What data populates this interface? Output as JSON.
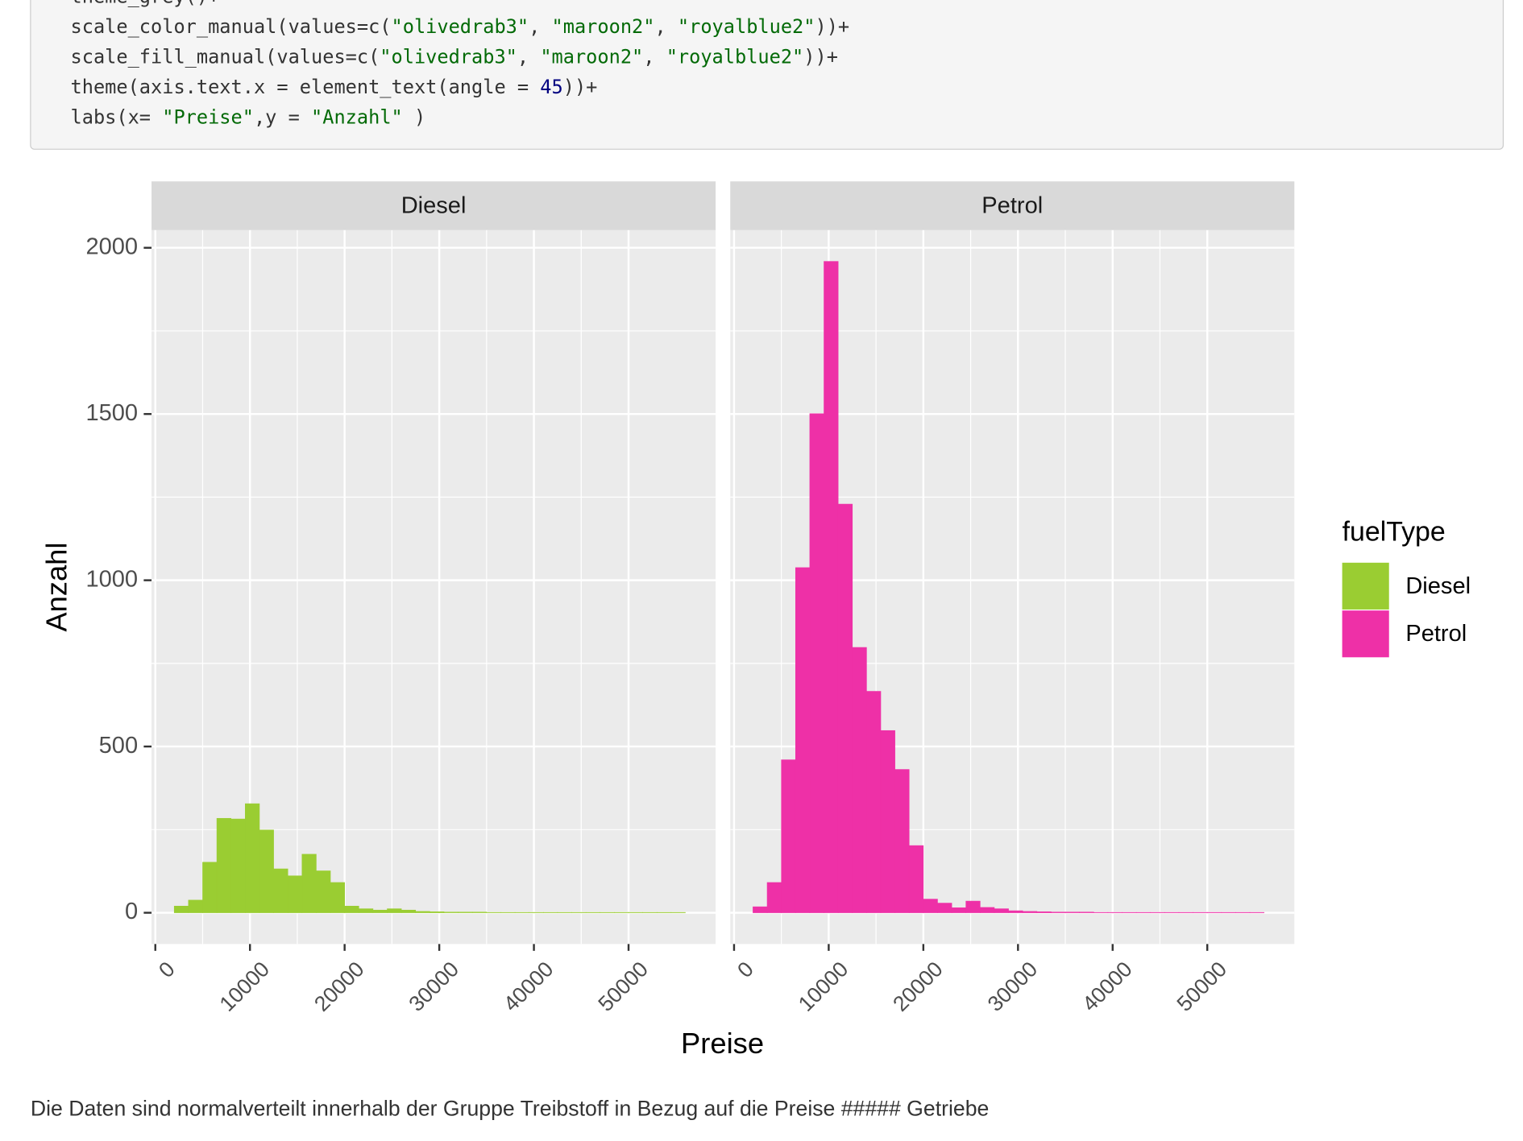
{
  "code": [
    "theme_grey()+",
    "scale_color_manual(values=c(\"olivedrab3\", \"maroon2\", \"royalblue2\"))+",
    "scale_fill_manual(values=c(\"olivedrab3\", \"maroon2\", \"royalblue2\"))+",
    "theme(axis.text.x = element_text(angle = 45))+",
    "labs(x= \"Preise\",y = \"Anzahl\" )"
  ],
  "chart_data": {
    "type": "histogram",
    "xlabel": "Preise",
    "ylabel": "Anzahl",
    "legend_title": "fuelType",
    "legend": "right",
    "grid": true,
    "bins": [
      2000,
      3500,
      5000,
      6500,
      8000,
      9500,
      11000,
      12500,
      14000,
      15500,
      17000,
      18500,
      20000,
      21500,
      23000,
      24500,
      26000,
      27500,
      29000,
      30500,
      32000,
      33500,
      35000,
      36500,
      38000,
      39500,
      41000,
      42500,
      44000,
      45500,
      47000,
      48500,
      50000,
      51500,
      53000,
      54500,
      56000
    ],
    "series": [
      {
        "name": "Diesel",
        "color": "#9acd32",
        "values": [
          20,
          38,
          152,
          284,
          282,
          328,
          249,
          132,
          111,
          176,
          126,
          91,
          20,
          12,
          8,
          12,
          8,
          4,
          3,
          2,
          2,
          2,
          1,
          1,
          1,
          1,
          1,
          1,
          1,
          1,
          1,
          1,
          1,
          1,
          1,
          1
        ]
      },
      {
        "name": "Petrol",
        "color": "#ee30a7",
        "values": [
          18,
          91,
          460,
          1038,
          1501,
          1959,
          1229,
          798,
          666,
          548,
          431,
          202,
          41,
          29,
          15,
          35,
          16,
          12,
          6,
          4,
          3,
          2,
          2,
          2,
          1,
          1,
          1,
          1,
          1,
          1,
          1,
          1,
          1,
          1,
          1,
          1
        ]
      }
    ],
    "xlim": [
      -400,
      59200
    ],
    "xticks": [
      0,
      10000,
      20000,
      30000,
      40000,
      50000
    ],
    "ylim": [
      -94,
      2053
    ],
    "yticks": [
      0,
      500,
      1000,
      1500,
      2000
    ]
  },
  "paragraph": "Die Daten sind normalverteilt innerhalb der Gruppe Treibstoff in Bezug auf die Preise ##### Getriebe"
}
